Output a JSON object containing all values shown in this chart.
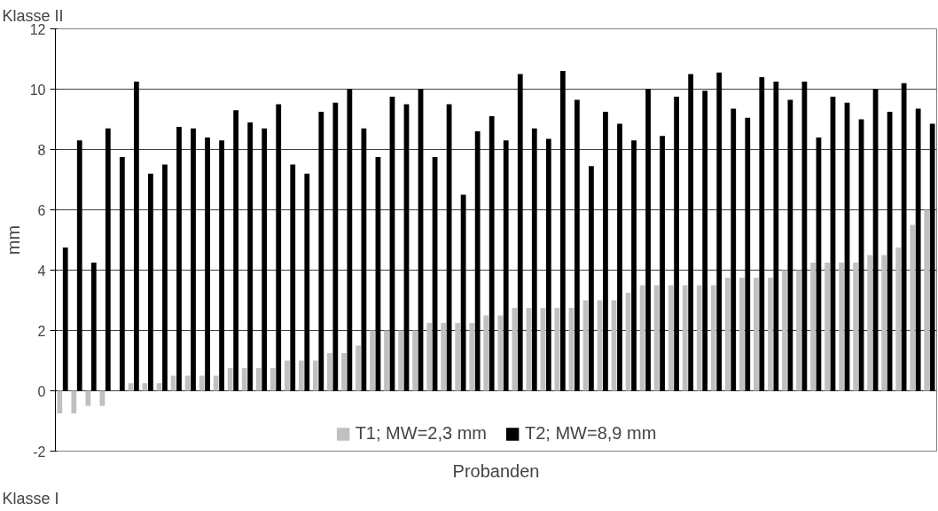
{
  "chart_data": {
    "type": "bar",
    "xlabel": "Probanden",
    "ylabel": "mm",
    "annotations": [
      "Klasse II",
      "Klasse I"
    ],
    "categories": [
      null,
      null,
      null,
      null,
      null,
      null,
      null,
      null,
      null,
      null,
      null,
      null,
      null,
      null,
      null,
      null,
      null,
      null,
      null,
      null,
      null,
      null,
      null,
      null,
      null,
      null,
      null,
      null,
      null,
      null,
      null,
      null,
      null,
      null,
      null,
      null,
      null,
      null,
      null,
      null,
      null,
      null,
      null,
      null,
      null,
      null,
      null,
      null,
      null,
      null,
      null,
      null,
      null,
      null,
      null,
      null,
      null,
      null,
      null,
      null,
      null,
      null
    ],
    "series": [
      {
        "name": "T1; MW=2,3 mm",
        "color": "#c0c0c0",
        "values": [
          -0.75,
          -0.75,
          -0.5,
          -0.5,
          0,
          0.25,
          0.25,
          0.25,
          0.5,
          0.5,
          0.5,
          0.5,
          0.75,
          0.75,
          0.75,
          0.75,
          1.0,
          1.0,
          1.0,
          1.25,
          1.25,
          1.5,
          2.0,
          2.0,
          2.0,
          2.0,
          2.25,
          2.25,
          2.25,
          2.25,
          2.5,
          2.5,
          2.75,
          2.75,
          2.75,
          2.75,
          2.75,
          3.0,
          3.0,
          3.0,
          3.25,
          3.5,
          3.5,
          3.5,
          3.5,
          3.5,
          3.5,
          3.75,
          3.75,
          3.75,
          3.75,
          4.0,
          4.0,
          4.25,
          4.25,
          4.25,
          4.25,
          4.5,
          4.5,
          4.75,
          5.5,
          6.0
        ]
      },
      {
        "name": "T2; MW=8,9 mm",
        "color": "#000000",
        "values": [
          4.75,
          8.3,
          4.25,
          8.7,
          7.75,
          10.25,
          7.2,
          7.5,
          8.75,
          8.7,
          8.4,
          8.3,
          9.3,
          8.9,
          8.7,
          9.5,
          7.5,
          7.2,
          9.25,
          9.55,
          10.0,
          8.7,
          7.75,
          9.75,
          9.5,
          10.0,
          7.75,
          9.5,
          6.5,
          8.6,
          9.1,
          8.3,
          10.5,
          8.7,
          8.35,
          10.6,
          9.65,
          7.45,
          9.25,
          8.85,
          8.3,
          10.0,
          8.45,
          9.75,
          10.5,
          9.95,
          10.55,
          9.35,
          9.05,
          10.4,
          10.25,
          9.65,
          10.25,
          8.4,
          9.75,
          9.55,
          9.0,
          10.0,
          9.25,
          10.2,
          9.35,
          8.85
        ]
      }
    ],
    "ylim": [
      -2,
      12
    ],
    "yticks": [
      -2,
      0,
      2,
      4,
      6,
      8,
      10,
      12
    ],
    "grid": "y",
    "legend": "bottom",
    "tick_labels": "y"
  }
}
